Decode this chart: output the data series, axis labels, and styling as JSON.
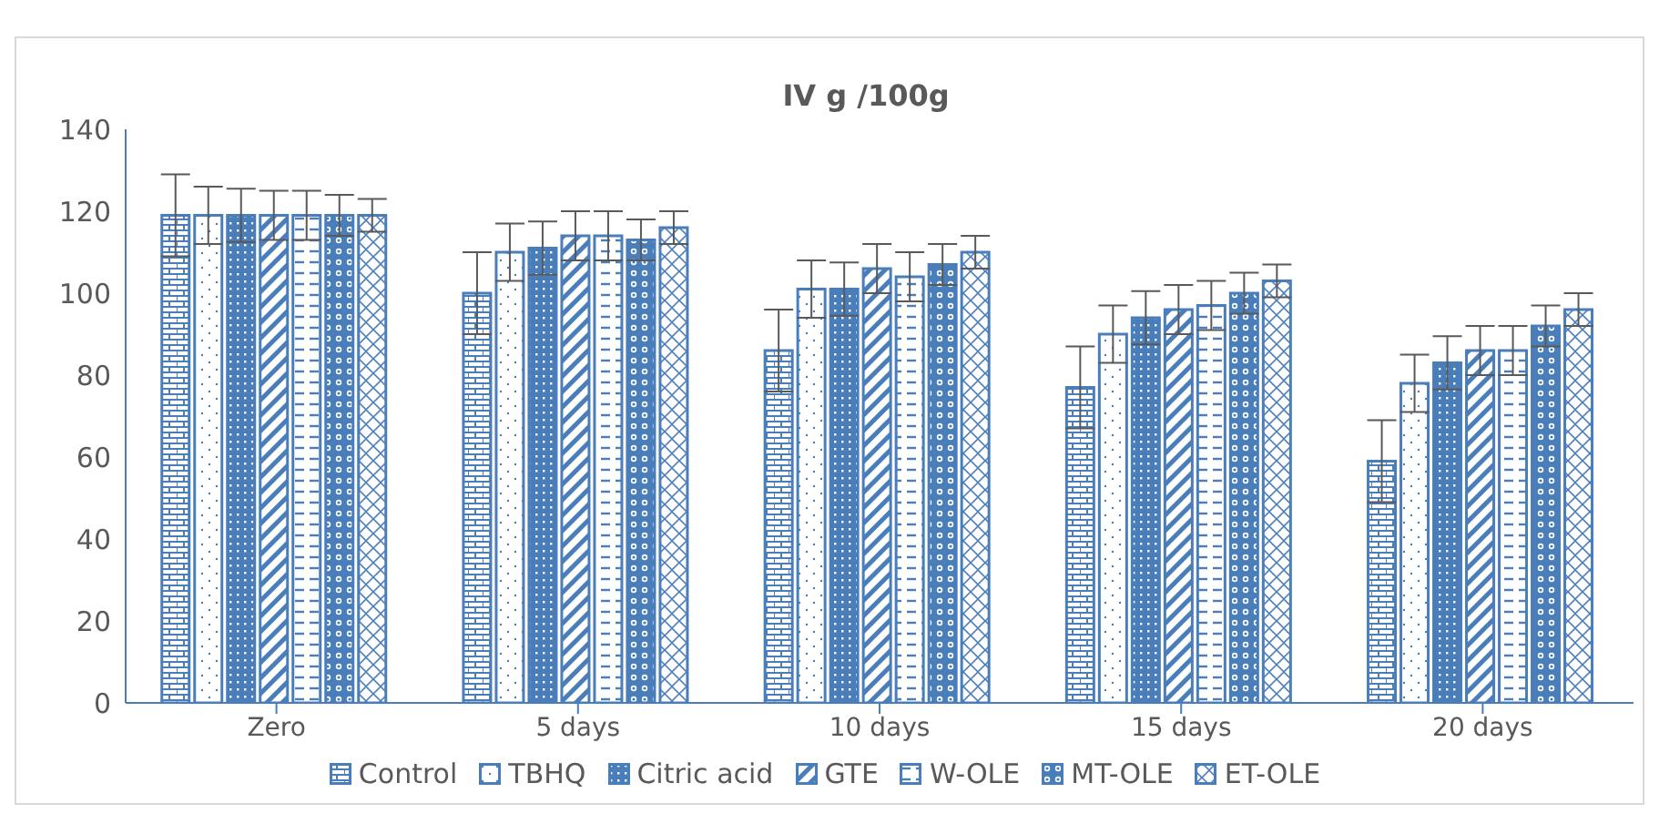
{
  "chart_data": {
    "type": "bar",
    "title": "IV g /100g",
    "categories": [
      "Zero",
      "5 days",
      "10 days",
      "15 days",
      "20 days"
    ],
    "series": [
      {
        "name": "Control",
        "color": "#4a7ebb",
        "values": [
          119,
          100,
          86,
          77,
          59
        ],
        "errors": [
          10,
          10,
          10,
          10,
          10
        ]
      },
      {
        "name": "TBHQ",
        "color": "#4a7ebb",
        "values": [
          119,
          110,
          101,
          90,
          78
        ],
        "errors": [
          7,
          7,
          7,
          7,
          7
        ]
      },
      {
        "name": "Citric acid",
        "color": "#4a7ebb",
        "values": [
          119,
          111,
          101,
          94,
          83
        ],
        "errors": [
          6.5,
          6.5,
          6.5,
          6.5,
          6.5
        ]
      },
      {
        "name": "GTE",
        "color": "#4a7ebb",
        "values": [
          119,
          114,
          106,
          96,
          86
        ],
        "errors": [
          6,
          6,
          6,
          6,
          6
        ]
      },
      {
        "name": "W-OLE",
        "color": "#4a7ebb",
        "values": [
          119,
          114,
          104,
          97,
          86
        ],
        "errors": [
          6,
          6,
          6,
          6,
          6
        ]
      },
      {
        "name": "MT-OLE",
        "color": "#4a7ebb",
        "values": [
          119,
          113,
          107,
          100,
          92
        ],
        "errors": [
          5,
          5,
          5,
          5,
          5
        ]
      },
      {
        "name": "ET-OLE",
        "color": "#4a7ebb",
        "values": [
          119,
          116,
          110,
          103,
          96
        ],
        "errors": [
          4,
          4,
          4,
          4,
          4
        ]
      }
    ],
    "ylim": [
      0,
      140
    ],
    "yticks": [
      0,
      20,
      40,
      60,
      80,
      100,
      120,
      140
    ],
    "grid": false,
    "legend": "bottom"
  }
}
